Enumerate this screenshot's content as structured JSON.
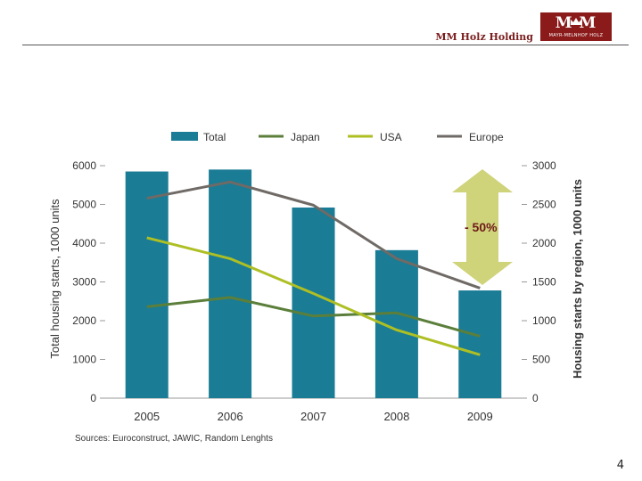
{
  "header": {
    "title": "MM Holz Holding",
    "logo_letters": "M M",
    "logo_text": "MAYR-MELNHOF HOLZ"
  },
  "page_number": "4",
  "colors": {
    "total": "#1a7c95",
    "japan": "#5b7f3a",
    "usa": "#aebf24",
    "europe": "#6f6a66",
    "arrow": "#cfd37a",
    "change_label": "#6e1a1a",
    "logo": "#8b1a1a"
  },
  "chart_data": {
    "type": "bar",
    "categories": [
      "2005",
      "2006",
      "2007",
      "2008",
      "2009"
    ],
    "series": [
      {
        "name": "Total",
        "type": "bar",
        "axis": "left",
        "values": [
          5850,
          5900,
          4920,
          3820,
          2780
        ]
      },
      {
        "name": "Japan",
        "type": "line",
        "axis": "right",
        "values": [
          1180,
          1300,
          1060,
          1100,
          800
        ]
      },
      {
        "name": "USA",
        "type": "line",
        "axis": "right",
        "values": [
          2070,
          1800,
          1350,
          880,
          560
        ]
      },
      {
        "name": "Europe",
        "type": "line",
        "axis": "right",
        "values": [
          2580,
          2790,
          2490,
          1800,
          1420
        ]
      }
    ],
    "ylabel": "Total housing starts, 1000 units",
    "y2label": "Housing starts by region, 1000 units",
    "ylim": [
      0,
      6000
    ],
    "y2lim": [
      0,
      3000
    ],
    "yticks": [
      "0",
      "1000",
      "2000",
      "3000",
      "4000",
      "5000",
      "6000"
    ],
    "y2ticks": [
      "0",
      "500",
      "1000",
      "1500",
      "2000",
      "2500",
      "3000"
    ],
    "legend_position": "top",
    "grid": false,
    "annotation": "- 50%",
    "source": "Sources: Euroconstruct, JAWIC, Random Lenghts"
  }
}
